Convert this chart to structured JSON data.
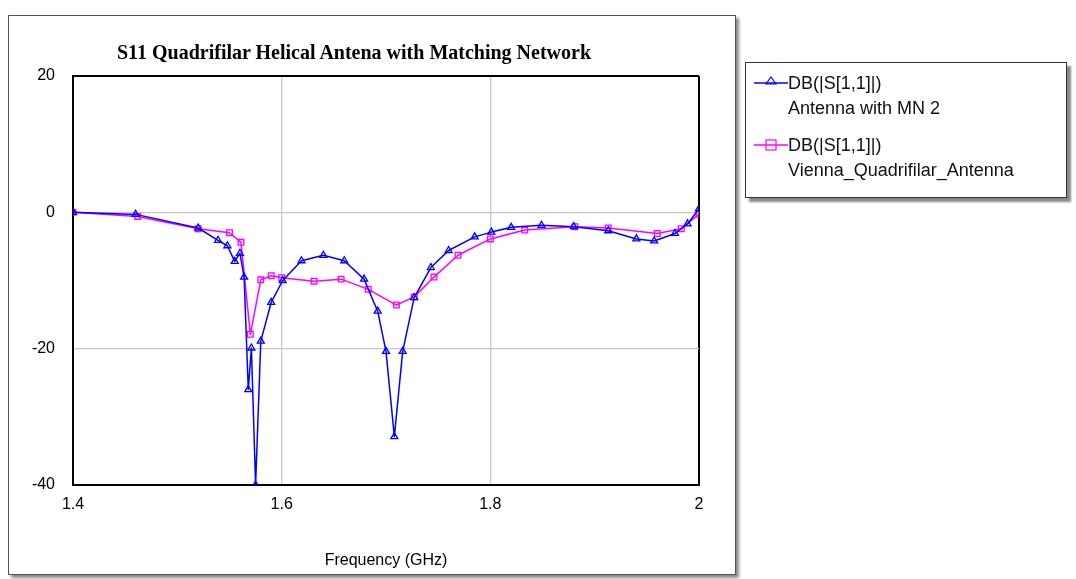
{
  "chart_data": {
    "type": "line",
    "title": "S11 Quadrifilar Helical Antena with Matching Network",
    "xlabel": "Frequency (GHz)",
    "xlim": [
      1.4,
      2
    ],
    "xticks": [
      1.4,
      1.6,
      1.8,
      2
    ],
    "ylim": [
      -40,
      20
    ],
    "yticks": [
      -40,
      -20,
      0,
      20
    ],
    "grid": true,
    "legend": "right",
    "line_style": "solid",
    "series": [
      {
        "name": "DB(|S[1,1]|)\nAntenna with MN 2",
        "color": "#0000ff",
        "marker": "triangle",
        "x": [
          1.4,
          1.46,
          1.52,
          1.539,
          1.548,
          1.555,
          1.56,
          1.564,
          1.568,
          1.571,
          1.575,
          1.58,
          1.59,
          1.601,
          1.619,
          1.64,
          1.66,
          1.679,
          1.692,
          1.7,
          1.708,
          1.716,
          1.727,
          1.743,
          1.76,
          1.785,
          1.801,
          1.82,
          1.849,
          1.88,
          1.913,
          1.94,
          1.957,
          1.977,
          1.989,
          2
        ],
        "values": [
          0,
          -0.3,
          -2.3,
          -4.1,
          -4.9,
          -7.2,
          -6,
          -9.5,
          -26,
          -19.9,
          -40,
          -18.9,
          -13.2,
          -10,
          -7.1,
          -6.3,
          -7.1,
          -9.8,
          -14.5,
          -20.4,
          -32.9,
          -20.4,
          -12.5,
          -8.1,
          -5.6,
          -3.6,
          -2.9,
          -2.2,
          -1.9,
          -2.1,
          -2.7,
          -3.9,
          -4.2,
          -3.1,
          -1.7,
          0.5
        ]
      },
      {
        "name": "DB(|S[1,1]|)\nVienna_Quadrifilar_Antenna",
        "color": "#ff00ff",
        "marker": "square",
        "x": [
          1.4,
          1.462,
          1.52,
          1.55,
          1.561,
          1.57,
          1.58,
          1.59,
          1.6,
          1.631,
          1.657,
          1.683,
          1.71,
          1.727,
          1.746,
          1.769,
          1.8,
          1.833,
          1.881,
          1.913,
          1.96,
          1.983,
          2
        ],
        "values": [
          0,
          -0.6,
          -2.4,
          -3,
          -4.4,
          -17.9,
          -9.9,
          -9.3,
          -9.6,
          -10.1,
          -9.8,
          -11.3,
          -13.6,
          -12.4,
          -9.5,
          -6.3,
          -3.9,
          -2.6,
          -2.1,
          -2.3,
          -3.1,
          -2.4,
          -0.3
        ]
      }
    ]
  }
}
